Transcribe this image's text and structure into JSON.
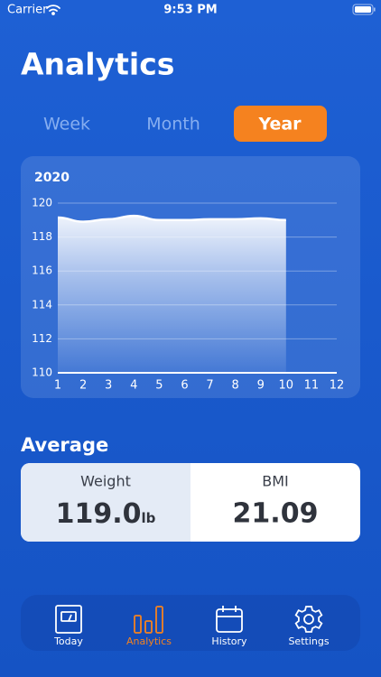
{
  "status_bar": {
    "carrier": "Carrier",
    "time": "9:53 PM"
  },
  "header": {
    "title": "Analytics"
  },
  "segments": {
    "items": [
      "Week",
      "Month",
      "Year"
    ],
    "selected_index": 2
  },
  "chart_data": {
    "type": "area",
    "title": "2020",
    "x": [
      1,
      2,
      3,
      4,
      5,
      6,
      7,
      8,
      9,
      10
    ],
    "values": [
      119.15,
      118.9,
      119.05,
      119.25,
      119.0,
      119.0,
      119.05,
      119.05,
      119.1,
      119.0
    ],
    "color": "#ffffff",
    "xlim": [
      1,
      12
    ],
    "xticks": [
      1,
      2,
      3,
      4,
      5,
      6,
      7,
      8,
      9,
      10,
      11,
      12
    ],
    "ylim": [
      110,
      120
    ],
    "yticks": [
      110,
      112,
      114,
      116,
      118,
      120
    ],
    "grid": true
  },
  "average": {
    "title": "Average",
    "weight": {
      "label": "Weight",
      "value": "119.0",
      "unit": "lb"
    },
    "bmi": {
      "label": "BMI",
      "value": "21.09"
    }
  },
  "tab_bar": {
    "items": [
      "Today",
      "Analytics",
      "History",
      "Settings"
    ],
    "active_index": 1
  }
}
